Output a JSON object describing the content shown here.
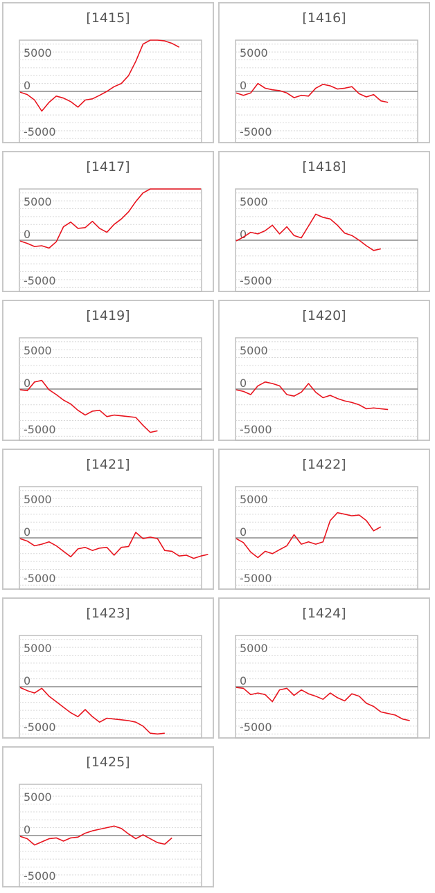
{
  "chart_data": [
    {
      "type": "line",
      "title": "[1415]",
      "ylim": [
        -6500,
        6500
      ],
      "ytick_labels": [
        "5000",
        "0",
        "-5000"
      ],
      "series": [
        {
          "values": [
            -100,
            -400,
            -1100,
            -2500,
            -1400,
            -600,
            -850,
            -1300,
            -2000,
            -1100,
            -950,
            -500,
            0,
            600,
            1000,
            2000,
            3800,
            6000,
            6500,
            6500,
            6400,
            6100,
            5600
          ]
        }
      ]
    },
    {
      "type": "line",
      "title": "[1416]",
      "ylim": [
        -6500,
        6500
      ],
      "ytick_labels": [
        "5000",
        "0",
        "-5000"
      ],
      "series": [
        {
          "values": [
            -200,
            -500,
            -200,
            1000,
            400,
            200,
            100,
            -200,
            -800,
            -500,
            -600,
            400,
            900,
            700,
            300,
            400,
            600,
            -300,
            -700,
            -400,
            -1200,
            -1400
          ]
        }
      ]
    },
    {
      "type": "line",
      "title": "[1417]",
      "ylim": [
        -6500,
        6500
      ],
      "ytick_labels": [
        "5000",
        "0",
        "-5000"
      ],
      "series": [
        {
          "values": [
            -100,
            -400,
            -800,
            -700,
            -1000,
            -200,
            1700,
            2300,
            1500,
            1600,
            2400,
            1500,
            1000,
            2000,
            2700,
            3600,
            4900,
            6000,
            6500,
            6500,
            6500,
            6500,
            6500,
            6500,
            6500,
            6500
          ]
        }
      ]
    },
    {
      "type": "line",
      "title": "[1418]",
      "ylim": [
        -6500,
        6500
      ],
      "ytick_labels": [
        "5000",
        "0",
        "-5000"
      ],
      "series": [
        {
          "values": [
            -100,
            400,
            1000,
            800,
            1200,
            1900,
            800,
            1700,
            600,
            300,
            1800,
            3300,
            2900,
            2700,
            1900,
            900,
            600,
            0,
            -700,
            -1300,
            -1100
          ]
        }
      ]
    },
    {
      "type": "line",
      "title": "[1419]",
      "ylim": [
        -6500,
        6500
      ],
      "ytick_labels": [
        "5000",
        "0",
        "-5000"
      ],
      "series": [
        {
          "values": [
            -100,
            -200,
            900,
            1100,
            -100,
            -700,
            -1400,
            -1900,
            -2700,
            -3300,
            -2800,
            -2700,
            -3500,
            -3300,
            -3400,
            -3500,
            -3600,
            -4600,
            -5500,
            -5300
          ]
        }
      ]
    },
    {
      "type": "line",
      "title": "[1420]",
      "ylim": [
        -6500,
        6500
      ],
      "ytick_labels": [
        "5000",
        "0",
        "-5000"
      ],
      "series": [
        {
          "values": [
            -100,
            -300,
            -700,
            400,
            900,
            700,
            400,
            -700,
            -900,
            -400,
            700,
            -400,
            -1100,
            -800,
            -1200,
            -1500,
            -1700,
            -2000,
            -2500,
            -2400,
            -2500,
            -2600
          ]
        }
      ]
    },
    {
      "type": "line",
      "title": "[1421]",
      "ylim": [
        -6500,
        6500
      ],
      "ytick_labels": [
        "5000",
        "0",
        "-5000"
      ],
      "series": [
        {
          "values": [
            -100,
            -400,
            -1000,
            -800,
            -500,
            -1000,
            -1700,
            -2400,
            -1400,
            -1200,
            -1600,
            -1300,
            -1200,
            -2200,
            -1200,
            -1100,
            700,
            -100,
            100,
            -100,
            -1600,
            -1700,
            -2300,
            -2200,
            -2600,
            -2300,
            -2100
          ]
        }
      ]
    },
    {
      "type": "line",
      "title": "[1422]",
      "ylim": [
        -6500,
        6500
      ],
      "ytick_labels": [
        "5000",
        "0",
        "-5000"
      ],
      "series": [
        {
          "values": [
            -100,
            -600,
            -1800,
            -2500,
            -1700,
            -2000,
            -1500,
            -1000,
            400,
            -800,
            -500,
            -800,
            -500,
            2200,
            3200,
            3000,
            2800,
            2900,
            2200,
            900,
            1400
          ]
        }
      ]
    },
    {
      "type": "line",
      "title": "[1423]",
      "ylim": [
        -6500,
        6500
      ],
      "ytick_labels": [
        "5000",
        "0",
        "-5000"
      ],
      "series": [
        {
          "values": [
            -100,
            -500,
            -800,
            -200,
            -1200,
            -1900,
            -2600,
            -3300,
            -3800,
            -2900,
            -3800,
            -4500,
            -4000,
            -4100,
            -4200,
            -4300,
            -4500,
            -5000,
            -5900,
            -6000,
            -5900
          ]
        }
      ]
    },
    {
      "type": "line",
      "title": "[1424]",
      "ylim": [
        -6500,
        6500
      ],
      "ytick_labels": [
        "5000",
        "0",
        "-5000"
      ],
      "series": [
        {
          "values": [
            -100,
            -200,
            -1000,
            -800,
            -1000,
            -1900,
            -400,
            -200,
            -1100,
            -400,
            -900,
            -1200,
            -1600,
            -800,
            -1400,
            -1800,
            -900,
            -1200,
            -2100,
            -2500,
            -3200,
            -3400,
            -3600,
            -4100,
            -4300
          ]
        }
      ]
    },
    {
      "type": "line",
      "title": "[1425]",
      "ylim": [
        -6500,
        6500
      ],
      "ytick_labels": [
        "5000",
        "0",
        "-5000"
      ],
      "series": [
        {
          "values": [
            -100,
            -400,
            -1200,
            -800,
            -400,
            -300,
            -700,
            -300,
            -200,
            300,
            600,
            800,
            1000,
            1200,
            900,
            200,
            -400,
            100,
            -400,
            -900,
            -1100,
            -300
          ]
        }
      ]
    }
  ]
}
